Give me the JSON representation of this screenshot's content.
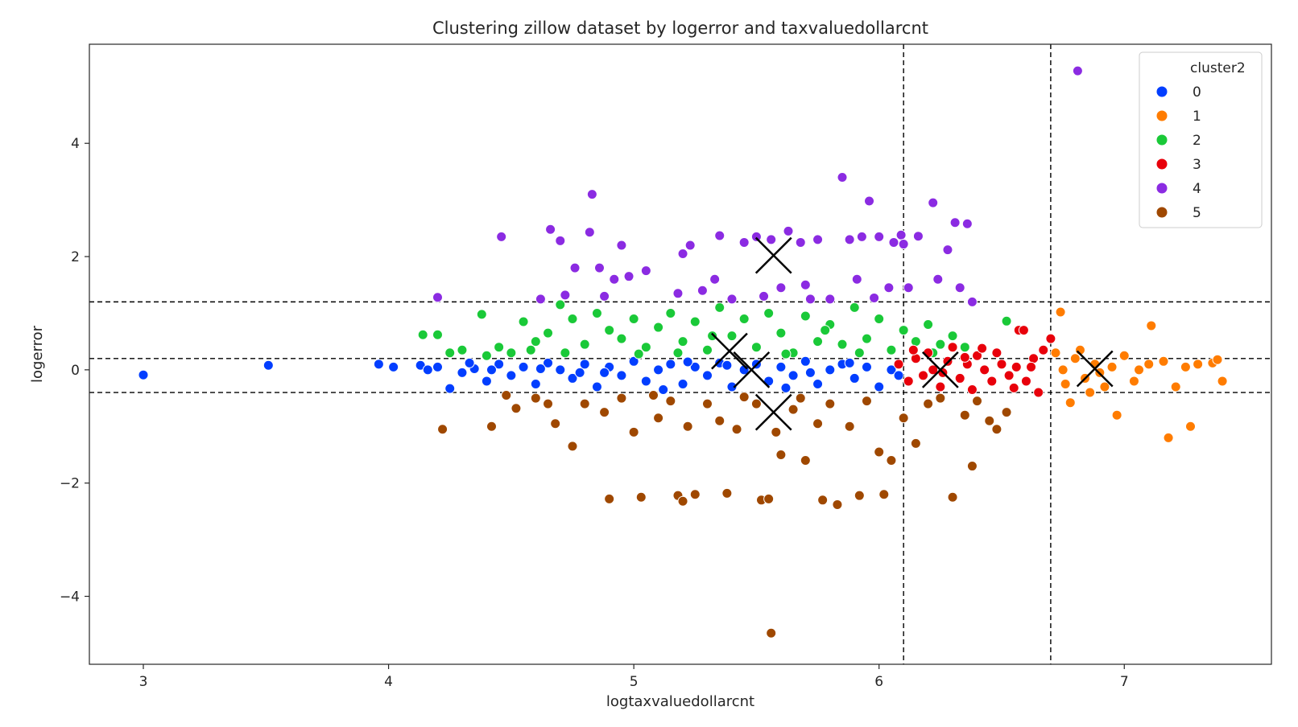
{
  "chart_data": {
    "type": "scatter",
    "title": "Clustering zillow dataset by logerror and taxvaluedollarcnt",
    "xlabel": "logtaxvaluedollarcnt",
    "ylabel": "logerror",
    "xlim": [
      2.78,
      7.6
    ],
    "ylim": [
      -5.2,
      5.75
    ],
    "xticks": [
      3,
      4,
      5,
      6,
      7
    ],
    "yticks": [
      -4,
      -2,
      0,
      2,
      4
    ],
    "xtick_labels": [
      "3",
      "4",
      "5",
      "6",
      "7"
    ],
    "ytick_labels": [
      "−4",
      "−2",
      "0",
      "2",
      "4"
    ],
    "grid": false,
    "legend": {
      "title": "cluster2",
      "placement": "top-right",
      "entries": [
        {
          "label": "0",
          "color": "#023eff"
        },
        {
          "label": "1",
          "color": "#ff7c00"
        },
        {
          "label": "2",
          "color": "#1ac938"
        },
        {
          "label": "3",
          "color": "#e8000b"
        },
        {
          "label": "4",
          "color": "#8b2be2"
        },
        {
          "label": "5",
          "color": "#9f4800"
        }
      ]
    },
    "reference_lines": {
      "vertical": [
        6.1,
        6.7
      ],
      "horizontal": [
        1.2,
        0.2,
        -0.4
      ]
    },
    "centroids": [
      {
        "cluster": "0",
        "x": 5.48,
        "y": 0.0
      },
      {
        "cluster": "1",
        "x": 6.88,
        "y": 0.02
      },
      {
        "cluster": "2",
        "x": 5.39,
        "y": 0.33
      },
      {
        "cluster": "3",
        "x": 6.25,
        "y": 0.0
      },
      {
        "cluster": "4",
        "x": 5.57,
        "y": 2.02
      },
      {
        "cluster": "5",
        "x": 5.57,
        "y": -0.75
      }
    ],
    "series": [
      {
        "name": "0",
        "color": "#023eff",
        "points": [
          [
            3.0,
            -0.09
          ],
          [
            3.51,
            0.08
          ],
          [
            3.96,
            0.1
          ],
          [
            4.02,
            0.05
          ],
          [
            4.13,
            0.08
          ],
          [
            4.16,
            0.0
          ],
          [
            4.2,
            0.05
          ],
          [
            4.25,
            -0.33
          ],
          [
            4.3,
            -0.05
          ],
          [
            4.35,
            0.02
          ],
          [
            4.4,
            -0.2
          ],
          [
            4.45,
            0.1
          ],
          [
            4.5,
            -0.1
          ],
          [
            4.55,
            0.05
          ],
          [
            4.6,
            -0.25
          ],
          [
            4.65,
            0.12
          ],
          [
            4.7,
            0.0
          ],
          [
            4.75,
            -0.15
          ],
          [
            4.8,
            0.1
          ],
          [
            4.85,
            -0.3
          ],
          [
            4.9,
            0.05
          ],
          [
            4.95,
            -0.1
          ],
          [
            5.0,
            0.15
          ],
          [
            5.05,
            -0.2
          ],
          [
            5.1,
            0.0
          ],
          [
            5.15,
            0.1
          ],
          [
            5.2,
            -0.25
          ],
          [
            5.25,
            0.05
          ],
          [
            5.3,
            -0.1
          ],
          [
            5.35,
            0.12
          ],
          [
            5.4,
            -0.3
          ],
          [
            5.45,
            0.0
          ],
          [
            5.5,
            0.1
          ],
          [
            5.55,
            -0.2
          ],
          [
            5.6,
            0.05
          ],
          [
            5.65,
            -0.1
          ],
          [
            5.7,
            0.15
          ],
          [
            5.75,
            -0.25
          ],
          [
            5.8,
            0.0
          ],
          [
            5.85,
            0.1
          ],
          [
            5.9,
            -0.15
          ],
          [
            5.95,
            0.05
          ],
          [
            6.0,
            -0.3
          ],
          [
            6.05,
            0.0
          ],
          [
            4.42,
            0.0
          ],
          [
            4.62,
            0.02
          ],
          [
            4.88,
            -0.05
          ],
          [
            5.12,
            -0.35
          ],
          [
            5.38,
            0.08
          ],
          [
            5.62,
            -0.32
          ],
          [
            5.88,
            0.12
          ],
          [
            6.08,
            -0.1
          ],
          [
            4.33,
            0.12
          ],
          [
            4.78,
            -0.05
          ],
          [
            5.22,
            0.14
          ],
          [
            5.72,
            -0.05
          ]
        ]
      },
      {
        "name": "1",
        "color": "#ff7c00",
        "points": [
          [
            6.74,
            1.02
          ],
          [
            6.78,
            -0.58
          ],
          [
            6.86,
            -0.4
          ],
          [
            6.92,
            -0.3
          ],
          [
            6.97,
            -0.8
          ],
          [
            7.0,
            0.25
          ],
          [
            7.04,
            -0.2
          ],
          [
            7.1,
            0.1
          ],
          [
            7.11,
            0.78
          ],
          [
            7.16,
            0.15
          ],
          [
            7.18,
            -1.2
          ],
          [
            7.21,
            -0.3
          ],
          [
            7.27,
            -1.0
          ],
          [
            7.3,
            0.1
          ],
          [
            7.36,
            0.12
          ],
          [
            7.38,
            0.18
          ],
          [
            7.4,
            -0.2
          ],
          [
            6.72,
            0.3
          ],
          [
            6.75,
            0.0
          ],
          [
            6.8,
            0.2
          ],
          [
            6.84,
            -0.15
          ],
          [
            6.88,
            0.1
          ],
          [
            6.95,
            0.05
          ],
          [
            7.06,
            0.0
          ],
          [
            6.76,
            -0.25
          ],
          [
            6.82,
            0.35
          ],
          [
            7.25,
            0.05
          ],
          [
            6.9,
            -0.05
          ]
        ]
      },
      {
        "name": "2",
        "color": "#1ac938",
        "points": [
          [
            4.14,
            0.62
          ],
          [
            4.2,
            0.62
          ],
          [
            4.25,
            0.3
          ],
          [
            4.3,
            0.35
          ],
          [
            4.38,
            0.98
          ],
          [
            4.45,
            0.4
          ],
          [
            4.5,
            0.3
          ],
          [
            4.55,
            0.85
          ],
          [
            4.6,
            0.5
          ],
          [
            4.65,
            0.65
          ],
          [
            4.7,
            1.15
          ],
          [
            4.75,
            0.9
          ],
          [
            4.8,
            0.45
          ],
          [
            4.85,
            1.0
          ],
          [
            4.9,
            0.7
          ],
          [
            4.95,
            0.55
          ],
          [
            5.0,
            0.9
          ],
          [
            5.05,
            0.4
          ],
          [
            5.1,
            0.75
          ],
          [
            5.15,
            1.0
          ],
          [
            5.2,
            0.5
          ],
          [
            5.25,
            0.85
          ],
          [
            5.3,
            0.35
          ],
          [
            5.35,
            1.1
          ],
          [
            5.4,
            0.6
          ],
          [
            5.45,
            0.9
          ],
          [
            5.5,
            0.4
          ],
          [
            5.55,
            1.0
          ],
          [
            5.6,
            0.65
          ],
          [
            5.65,
            0.3
          ],
          [
            5.7,
            0.95
          ],
          [
            5.75,
            0.5
          ],
          [
            5.8,
            0.8
          ],
          [
            5.85,
            0.45
          ],
          [
            5.9,
            1.1
          ],
          [
            5.95,
            0.55
          ],
          [
            6.0,
            0.9
          ],
          [
            6.05,
            0.35
          ],
          [
            6.1,
            0.7
          ],
          [
            6.15,
            0.5
          ],
          [
            6.2,
            0.8
          ],
          [
            6.25,
            0.45
          ],
          [
            6.3,
            0.6
          ],
          [
            6.35,
            0.4
          ],
          [
            6.52,
            0.86
          ],
          [
            4.4,
            0.25
          ],
          [
            4.72,
            0.3
          ],
          [
            5.02,
            0.28
          ],
          [
            5.32,
            0.6
          ],
          [
            5.62,
            0.28
          ],
          [
            5.92,
            0.3
          ],
          [
            6.22,
            0.3
          ],
          [
            4.58,
            0.35
          ],
          [
            5.18,
            0.3
          ],
          [
            5.78,
            0.7
          ]
        ]
      },
      {
        "name": "3",
        "color": "#e8000b",
        "points": [
          [
            6.08,
            0.1
          ],
          [
            6.12,
            -0.2
          ],
          [
            6.15,
            0.2
          ],
          [
            6.18,
            -0.1
          ],
          [
            6.2,
            0.3
          ],
          [
            6.22,
            0.0
          ],
          [
            6.25,
            -0.3
          ],
          [
            6.28,
            0.15
          ],
          [
            6.3,
            0.4
          ],
          [
            6.33,
            -0.15
          ],
          [
            6.36,
            0.1
          ],
          [
            6.38,
            -0.35
          ],
          [
            6.4,
            0.25
          ],
          [
            6.43,
            0.0
          ],
          [
            6.46,
            -0.2
          ],
          [
            6.48,
            0.3
          ],
          [
            6.5,
            0.1
          ],
          [
            6.53,
            -0.1
          ],
          [
            6.56,
            0.05
          ],
          [
            6.57,
            0.7
          ],
          [
            6.59,
            0.7
          ],
          [
            6.6,
            -0.2
          ],
          [
            6.63,
            0.2
          ],
          [
            6.65,
            -0.4
          ],
          [
            6.67,
            0.35
          ],
          [
            6.7,
            0.55
          ],
          [
            6.14,
            0.35
          ],
          [
            6.26,
            -0.05
          ],
          [
            6.42,
            0.38
          ],
          [
            6.55,
            -0.32
          ],
          [
            6.35,
            0.22
          ],
          [
            6.62,
            0.05
          ]
        ]
      },
      {
        "name": "4",
        "color": "#8b2be2",
        "points": [
          [
            4.2,
            1.28
          ],
          [
            4.46,
            2.35
          ],
          [
            4.62,
            1.25
          ],
          [
            4.66,
            2.48
          ],
          [
            4.7,
            2.28
          ],
          [
            4.72,
            1.32
          ],
          [
            4.76,
            1.8
          ],
          [
            4.82,
            2.43
          ],
          [
            4.83,
            3.1
          ],
          [
            4.86,
            1.8
          ],
          [
            4.88,
            1.3
          ],
          [
            4.92,
            1.6
          ],
          [
            4.95,
            2.2
          ],
          [
            4.98,
            1.65
          ],
          [
            5.05,
            1.75
          ],
          [
            5.18,
            1.35
          ],
          [
            5.2,
            2.05
          ],
          [
            5.23,
            2.2
          ],
          [
            5.33,
            1.6
          ],
          [
            5.35,
            2.37
          ],
          [
            5.4,
            1.25
          ],
          [
            5.45,
            2.25
          ],
          [
            5.5,
            2.35
          ],
          [
            5.53,
            1.3
          ],
          [
            5.56,
            2.3
          ],
          [
            5.6,
            1.45
          ],
          [
            5.63,
            2.45
          ],
          [
            5.68,
            2.25
          ],
          [
            5.72,
            1.25
          ],
          [
            5.75,
            2.3
          ],
          [
            5.8,
            1.25
          ],
          [
            5.85,
            3.4
          ],
          [
            5.88,
            2.3
          ],
          [
            5.91,
            1.6
          ],
          [
            5.93,
            2.35
          ],
          [
            5.96,
            2.98
          ],
          [
            6.0,
            2.35
          ],
          [
            6.04,
            1.45
          ],
          [
            6.06,
            2.25
          ],
          [
            6.09,
            2.38
          ],
          [
            6.12,
            1.45
          ],
          [
            6.16,
            2.36
          ],
          [
            6.22,
            2.95
          ],
          [
            6.24,
            1.6
          ],
          [
            6.28,
            2.12
          ],
          [
            6.31,
            2.6
          ],
          [
            6.33,
            1.45
          ],
          [
            6.36,
            2.58
          ],
          [
            6.38,
            1.2
          ],
          [
            6.81,
            5.28
          ],
          [
            5.28,
            1.4
          ],
          [
            5.7,
            1.5
          ],
          [
            5.98,
            1.27
          ],
          [
            6.1,
            2.22
          ]
        ]
      },
      {
        "name": "5",
        "color": "#9f4800",
        "points": [
          [
            4.22,
            -1.05
          ],
          [
            4.42,
            -1.0
          ],
          [
            4.52,
            -0.68
          ],
          [
            4.6,
            -0.5
          ],
          [
            4.68,
            -0.95
          ],
          [
            4.75,
            -1.35
          ],
          [
            4.8,
            -0.6
          ],
          [
            4.88,
            -0.75
          ],
          [
            4.9,
            -2.28
          ],
          [
            4.95,
            -0.5
          ],
          [
            5.0,
            -1.1
          ],
          [
            5.03,
            -2.25
          ],
          [
            5.1,
            -0.85
          ],
          [
            5.15,
            -0.55
          ],
          [
            5.18,
            -2.22
          ],
          [
            5.2,
            -2.32
          ],
          [
            5.22,
            -1.0
          ],
          [
            5.25,
            -2.2
          ],
          [
            5.3,
            -0.6
          ],
          [
            5.35,
            -0.9
          ],
          [
            5.38,
            -2.18
          ],
          [
            5.42,
            -1.05
          ],
          [
            5.5,
            -0.6
          ],
          [
            5.52,
            -2.3
          ],
          [
            5.55,
            -2.28
          ],
          [
            5.56,
            -4.65
          ],
          [
            5.58,
            -1.1
          ],
          [
            5.6,
            -1.5
          ],
          [
            5.65,
            -0.7
          ],
          [
            5.7,
            -1.6
          ],
          [
            5.75,
            -0.95
          ],
          [
            5.77,
            -2.3
          ],
          [
            5.8,
            -0.6
          ],
          [
            5.83,
            -2.38
          ],
          [
            5.88,
            -1.0
          ],
          [
            5.92,
            -2.22
          ],
          [
            5.95,
            -0.55
          ],
          [
            6.0,
            -1.45
          ],
          [
            6.02,
            -2.2
          ],
          [
            6.05,
            -1.6
          ],
          [
            6.1,
            -0.85
          ],
          [
            6.15,
            -1.3
          ],
          [
            6.2,
            -0.6
          ],
          [
            6.3,
            -2.25
          ],
          [
            6.35,
            -0.8
          ],
          [
            6.38,
            -1.7
          ],
          [
            6.45,
            -0.9
          ],
          [
            6.48,
            -1.05
          ],
          [
            6.52,
            -0.75
          ],
          [
            4.48,
            -0.45
          ],
          [
            5.08,
            -0.45
          ],
          [
            5.68,
            -0.5
          ],
          [
            6.25,
            -0.5
          ],
          [
            4.65,
            -0.6
          ],
          [
            5.45,
            -0.48
          ],
          [
            6.4,
            -0.55
          ]
        ]
      }
    ]
  }
}
